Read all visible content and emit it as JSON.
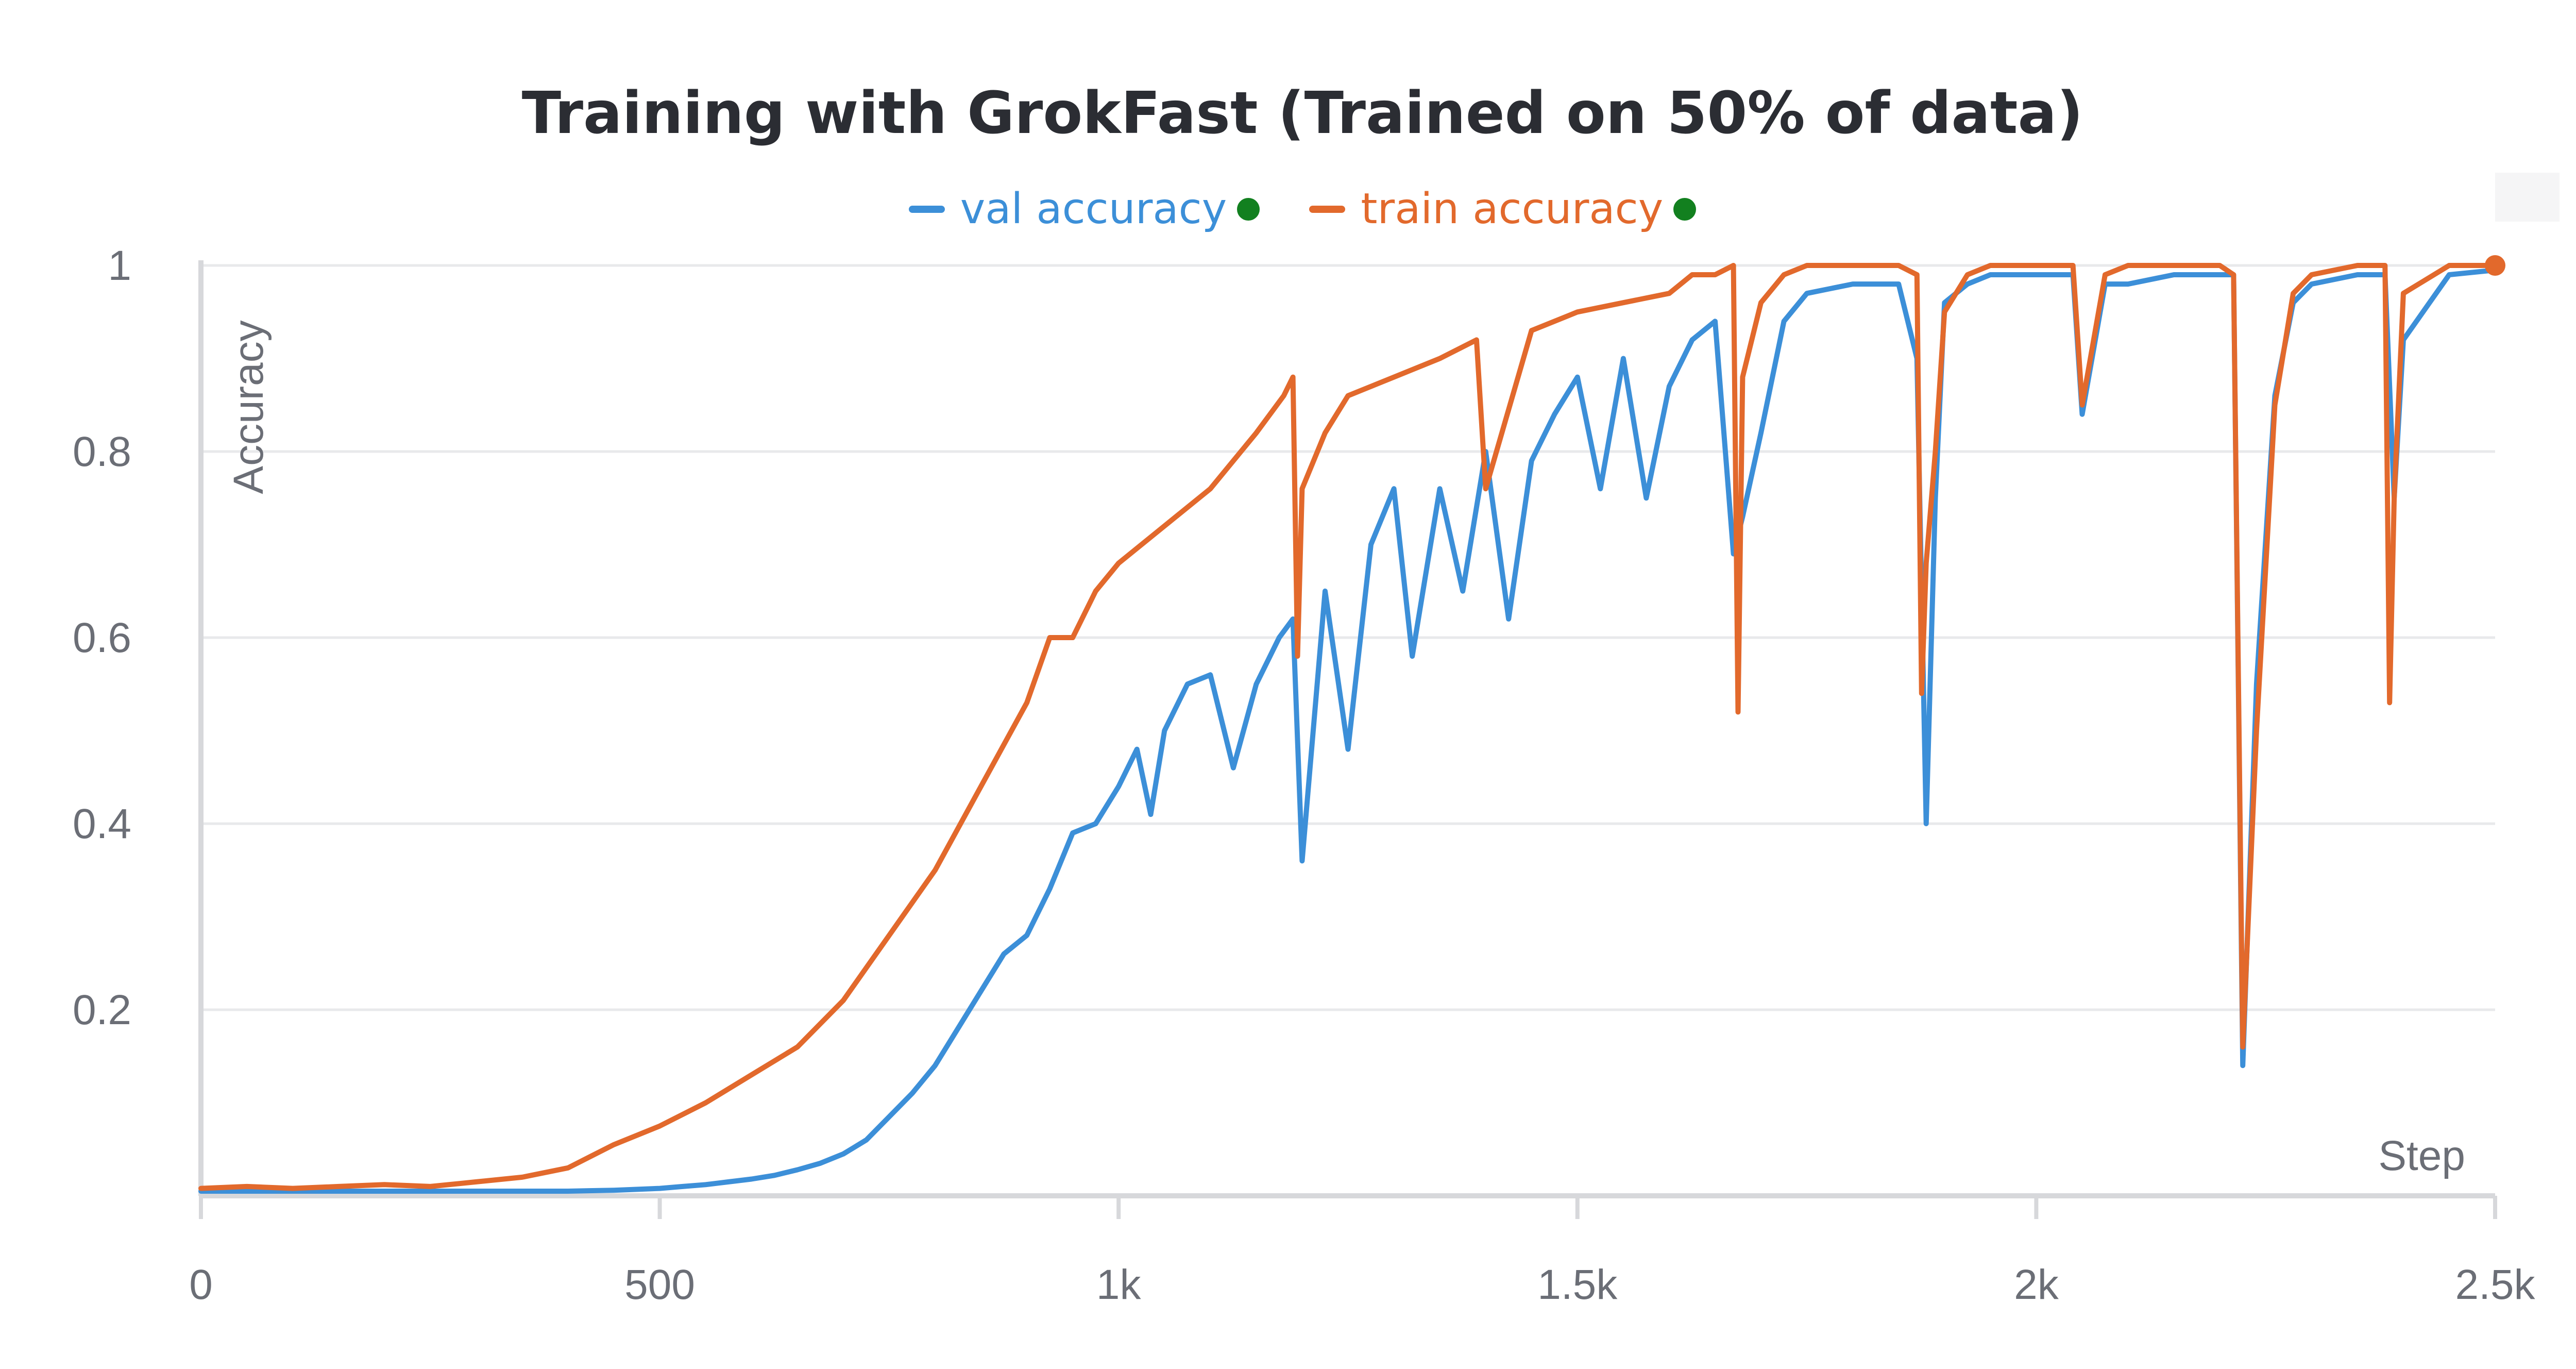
{
  "chart_data": {
    "type": "line",
    "title": "Training with GrokFast (Trained on 50% of data)",
    "xlabel": "Step",
    "ylabel": "Accuracy",
    "xlim": [
      0,
      2500
    ],
    "ylim": [
      0,
      1
    ],
    "x_ticks": [
      0,
      500,
      1000,
      1500,
      2000,
      2500
    ],
    "x_tick_labels": [
      "0",
      "500",
      "1k",
      "1.5k",
      "2k",
      "2.5k"
    ],
    "y_ticks": [
      0.2,
      0.4,
      0.6,
      0.8,
      1
    ],
    "y_tick_labels": [
      "0.2",
      "0.4",
      "0.6",
      "0.8",
      "1"
    ],
    "grid": true,
    "legend_position": "top-center",
    "series": [
      {
        "name": "val accuracy",
        "color": "#3c8fd8",
        "x": [
          0,
          50,
          100,
          150,
          200,
          250,
          300,
          350,
          400,
          450,
          500,
          525,
          550,
          575,
          600,
          625,
          650,
          675,
          700,
          725,
          750,
          775,
          800,
          825,
          850,
          875,
          900,
          925,
          950,
          975,
          1000,
          1020,
          1035,
          1050,
          1075,
          1100,
          1125,
          1150,
          1175,
          1190,
          1200,
          1225,
          1250,
          1275,
          1300,
          1320,
          1350,
          1375,
          1400,
          1425,
          1450,
          1475,
          1500,
          1525,
          1550,
          1575,
          1600,
          1625,
          1650,
          1670,
          1680,
          1700,
          1725,
          1750,
          1800,
          1850,
          1870,
          1880,
          1890,
          1900,
          1925,
          1950,
          2000,
          2040,
          2050,
          2075,
          2100,
          2150,
          2200,
          2215,
          2225,
          2240,
          2260,
          2280,
          2300,
          2350,
          2380,
          2390,
          2400,
          2450,
          2500
        ],
        "values": [
          0.005,
          0.005,
          0.005,
          0.005,
          0.005,
          0.005,
          0.005,
          0.005,
          0.005,
          0.006,
          0.008,
          0.01,
          0.012,
          0.015,
          0.018,
          0.022,
          0.028,
          0.035,
          0.045,
          0.06,
          0.085,
          0.11,
          0.14,
          0.18,
          0.22,
          0.26,
          0.28,
          0.33,
          0.39,
          0.4,
          0.44,
          0.48,
          0.41,
          0.5,
          0.55,
          0.56,
          0.46,
          0.55,
          0.6,
          0.62,
          0.36,
          0.65,
          0.48,
          0.7,
          0.76,
          0.58,
          0.76,
          0.65,
          0.8,
          0.62,
          0.79,
          0.84,
          0.88,
          0.76,
          0.9,
          0.75,
          0.87,
          0.92,
          0.94,
          0.69,
          0.73,
          0.82,
          0.94,
          0.97,
          0.98,
          0.98,
          0.9,
          0.4,
          0.75,
          0.96,
          0.98,
          0.99,
          0.99,
          0.99,
          0.84,
          0.98,
          0.98,
          0.99,
          0.99,
          0.99,
          0.14,
          0.55,
          0.86,
          0.96,
          0.98,
          0.99,
          0.99,
          0.75,
          0.92,
          0.99,
          0.995
        ]
      },
      {
        "name": "train accuracy",
        "color": "#e2692c",
        "x": [
          0,
          50,
          100,
          150,
          200,
          250,
          300,
          350,
          400,
          450,
          500,
          550,
          600,
          650,
          700,
          750,
          800,
          850,
          900,
          925,
          950,
          975,
          1000,
          1050,
          1100,
          1150,
          1180,
          1190,
          1195,
          1200,
          1225,
          1250,
          1300,
          1350,
          1390,
          1400,
          1450,
          1500,
          1550,
          1600,
          1625,
          1650,
          1670,
          1675,
          1680,
          1700,
          1725,
          1750,
          1800,
          1850,
          1870,
          1875,
          1880,
          1890,
          1900,
          1925,
          1950,
          2000,
          2040,
          2050,
          2075,
          2100,
          2150,
          2200,
          2215,
          2225,
          2240,
          2260,
          2280,
          2300,
          2350,
          2380,
          2385,
          2390,
          2400,
          2450,
          2500
        ],
        "values": [
          0.008,
          0.01,
          0.008,
          0.01,
          0.012,
          0.01,
          0.015,
          0.02,
          0.03,
          0.055,
          0.075,
          0.1,
          0.13,
          0.16,
          0.21,
          0.28,
          0.35,
          0.44,
          0.53,
          0.6,
          0.6,
          0.65,
          0.68,
          0.72,
          0.76,
          0.82,
          0.86,
          0.88,
          0.58,
          0.76,
          0.82,
          0.86,
          0.88,
          0.9,
          0.92,
          0.76,
          0.93,
          0.95,
          0.96,
          0.97,
          0.99,
          0.99,
          1.0,
          0.52,
          0.88,
          0.96,
          0.99,
          1.0,
          1.0,
          1.0,
          0.99,
          0.54,
          0.68,
          0.8,
          0.95,
          0.99,
          1.0,
          1.0,
          1.0,
          0.85,
          0.99,
          1.0,
          1.0,
          1.0,
          0.99,
          0.16,
          0.5,
          0.85,
          0.97,
          0.99,
          1.0,
          1.0,
          0.53,
          0.75,
          0.97,
          1.0,
          1.0
        ]
      }
    ]
  },
  "colors": {
    "val_accent": "#3c8fd8",
    "train_accent": "#e2692c",
    "legend_status_dot": "#12801f",
    "grid": "#e8e9eb",
    "axis": "#d7d8db",
    "tick_text": "#6b6e76",
    "title_text": "#2b2d33"
  }
}
